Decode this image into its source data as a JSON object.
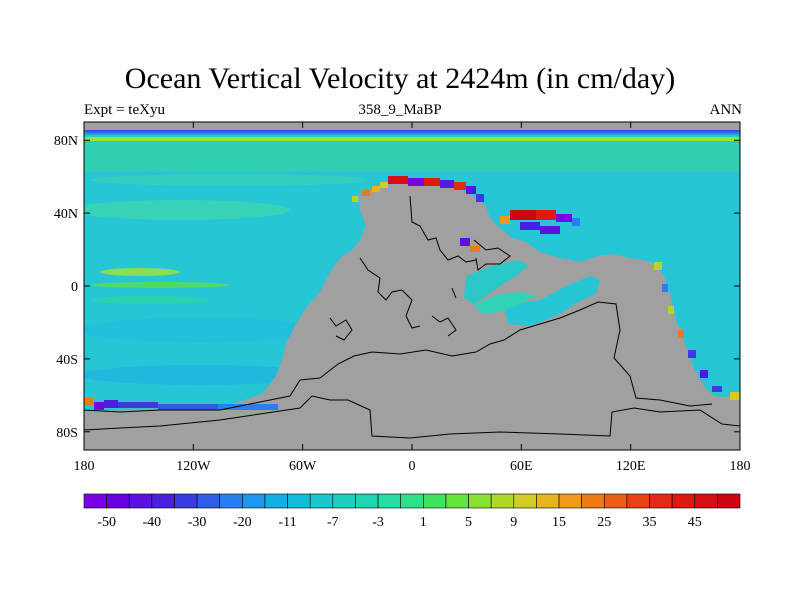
{
  "title": "Ocean Vertical Velocity at 2424m (in cm/day)",
  "subtitle_left": "Expt = teXyu",
  "subtitle_center": "358_9_MaBP",
  "subtitle_right": "ANN",
  "map": {
    "lon_ticks": [
      {
        "value": -180,
        "label": "180"
      },
      {
        "value": -120,
        "label": "120W"
      },
      {
        "value": -60,
        "label": "60W"
      },
      {
        "value": 0,
        "label": "0"
      },
      {
        "value": 60,
        "label": "60E"
      },
      {
        "value": 120,
        "label": "120E"
      },
      {
        "value": 180,
        "label": "180"
      }
    ],
    "lat_ticks": [
      {
        "value": 80,
        "label": "80N"
      },
      {
        "value": 40,
        "label": "40N"
      },
      {
        "value": 0,
        "label": "0"
      },
      {
        "value": -40,
        "label": "40S"
      },
      {
        "value": -80,
        "label": "80S"
      }
    ],
    "lon_range": [
      -180,
      180
    ],
    "lat_range": [
      -90,
      90
    ],
    "ocean_background_color": "#26c6d6",
    "land_color": "#a0a0a0"
  },
  "colorbar": {
    "labels": [
      "-50",
      "-40",
      "-30",
      "-20",
      "-11",
      "-7",
      "-3",
      "1",
      "5",
      "9",
      "15",
      "25",
      "35",
      "45"
    ],
    "colors": [
      "#7a00e6",
      "#6a00e0",
      "#5b12e0",
      "#4a20dc",
      "#3a3ce0",
      "#2e5ee8",
      "#2a7ff0",
      "#1e98ee",
      "#12aee6",
      "#10bcd8",
      "#18c8cc",
      "#1ecfc0",
      "#20d6b0",
      "#26dca0",
      "#2ee088",
      "#3ee45e",
      "#62e43a",
      "#8ae030",
      "#b0d82a",
      "#d2cc26",
      "#e6b420",
      "#ee9a1c",
      "#ee7a18",
      "#ec5e16",
      "#e84214",
      "#e42a12",
      "#de1a12",
      "#d40e12",
      "#cc0612"
    ]
  }
}
